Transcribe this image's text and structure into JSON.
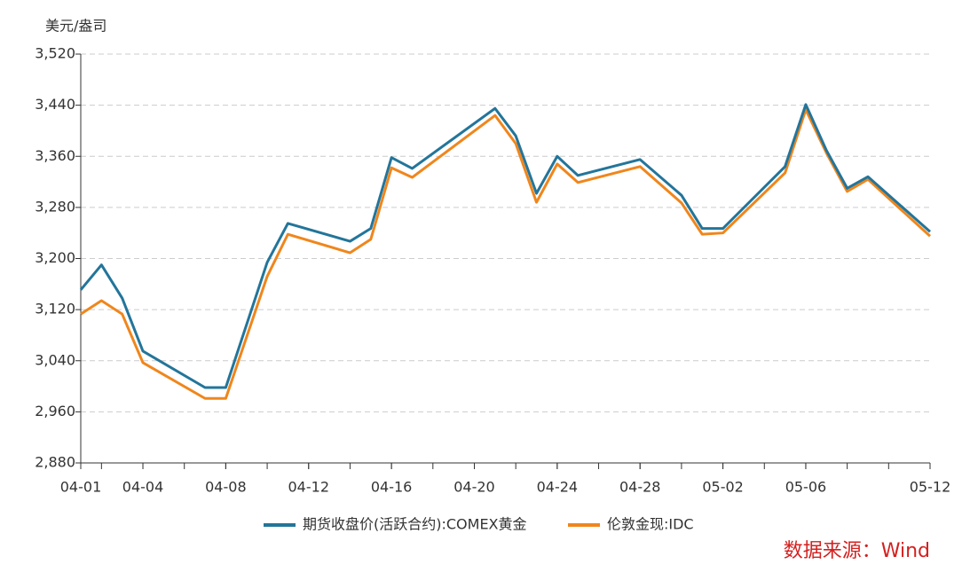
{
  "chart_data": {
    "type": "line",
    "y_label": "美元/盎司",
    "source": "数据来源：Wind",
    "x": [
      "04-01",
      "04-02",
      "04-03",
      "04-04",
      "04-07",
      "04-08",
      "04-10",
      "04-11",
      "04-14",
      "04-15",
      "04-16",
      "04-17",
      "04-21",
      "04-22",
      "04-23",
      "04-24",
      "04-25",
      "04-28",
      "04-30",
      "05-01",
      "05-02",
      "05-05",
      "05-06",
      "05-07",
      "05-08",
      "05-09",
      "05-12"
    ],
    "xlim": [
      "04-01",
      "05-12"
    ],
    "xticks": [
      "04-01",
      "04-04",
      "04-08",
      "04-12",
      "04-16",
      "04-20",
      "04-24",
      "04-28",
      "05-02",
      "05-06",
      "05-12"
    ],
    "ylim": [
      2880,
      3520
    ],
    "yticks": [
      {
        "value": 2880,
        "label": "2,880"
      },
      {
        "value": 2960,
        "label": "2,960"
      },
      {
        "value": 3040,
        "label": "3,040"
      },
      {
        "value": 3120,
        "label": "3,120"
      },
      {
        "value": 3200,
        "label": "3,200"
      },
      {
        "value": 3280,
        "label": "3,280"
      },
      {
        "value": 3360,
        "label": "3,360"
      },
      {
        "value": 3440,
        "label": "3,440"
      },
      {
        "value": 3520,
        "label": "3,520"
      }
    ],
    "grid": true,
    "series": [
      {
        "name": "期货收盘价(活跃合约):COMEX黄金",
        "color": "#23759a",
        "values": [
          3151,
          3190,
          3138,
          3055,
          2998,
          2998,
          3194,
          3255,
          3227,
          3247,
          3358,
          3341,
          3435,
          3392,
          3302,
          3360,
          3330,
          3355,
          3299,
          3247,
          3247,
          3344,
          3441,
          3369,
          3310,
          3328,
          3242
        ]
      },
      {
        "name": "伦敦金现:IDC",
        "color": "#f0861c",
        "values": [
          3113,
          3134,
          3113,
          3037,
          2981,
          2981,
          3172,
          3238,
          3209,
          3230,
          3342,
          3327,
          3424,
          3380,
          3288,
          3348,
          3319,
          3344,
          3287,
          3238,
          3240,
          3334,
          3433,
          3365,
          3305,
          3324,
          3235
        ]
      }
    ]
  }
}
